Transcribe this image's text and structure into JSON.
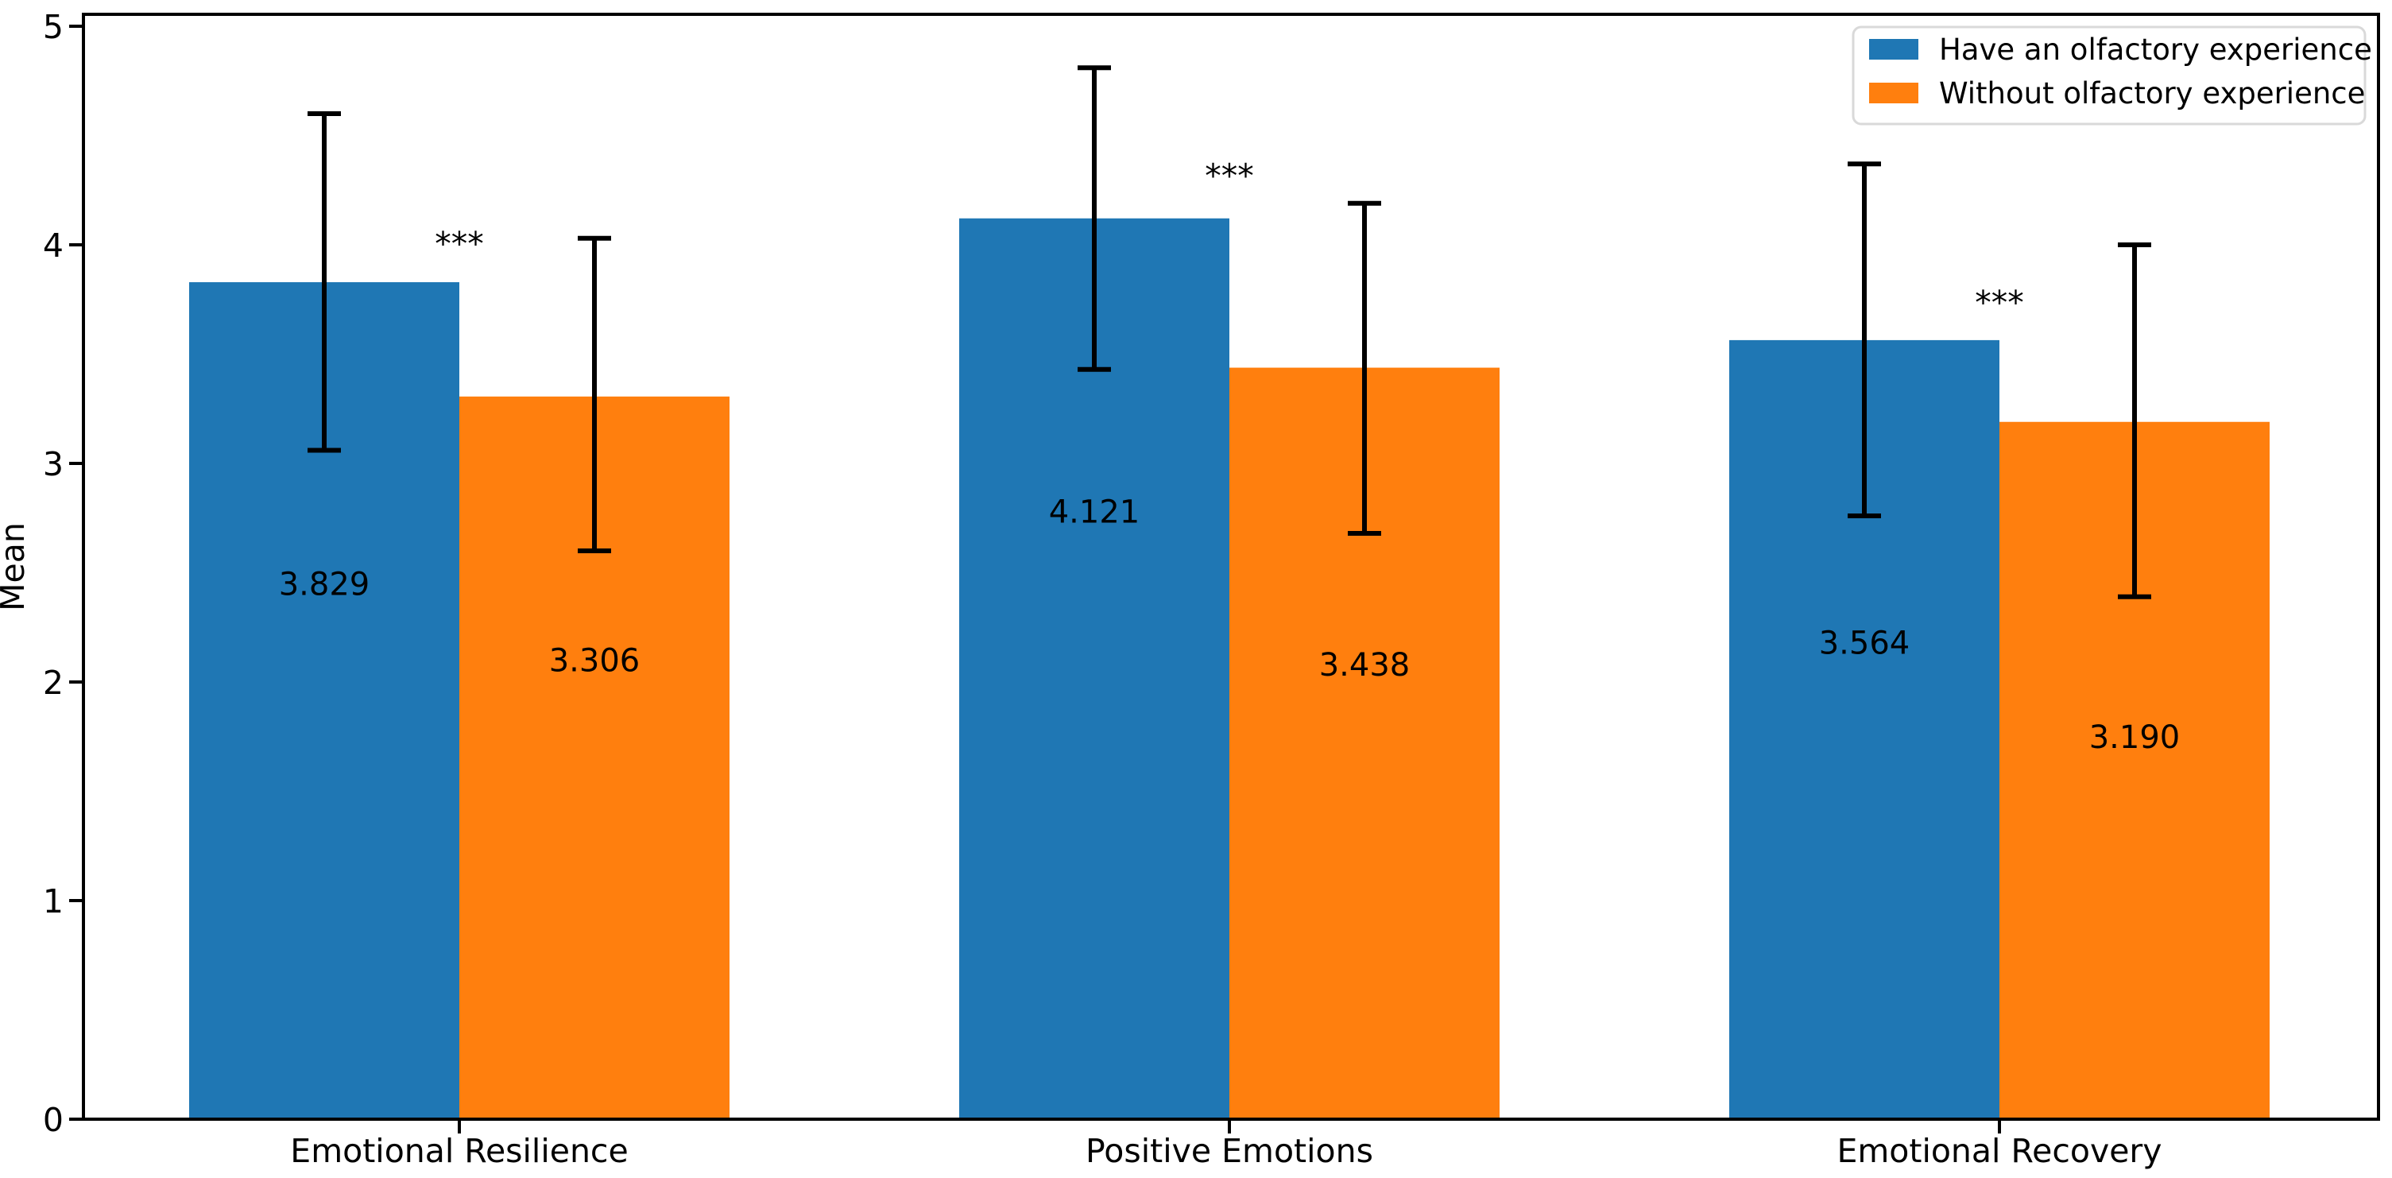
{
  "chart_data": {
    "type": "bar",
    "title": "",
    "xlabel": "",
    "ylabel": "Mean",
    "ylim": [
      0,
      5
    ],
    "yticks": [
      "0",
      "1",
      "2",
      "3",
      "4",
      "5"
    ],
    "grid": false,
    "background": "#ffffff",
    "axis_color": "#000000",
    "error_bar_color": "#000000",
    "categories": [
      "Emotional Resilience",
      "Positive Emotions",
      "Emotional Recovery"
    ],
    "series": [
      {
        "name": "Have an olfactory experience",
        "color": "#1f77b4",
        "values": [
          3.829,
          4.121,
          3.564
        ],
        "value_labels": [
          "3.829",
          "4.121",
          "3.564"
        ],
        "error_low": [
          3.06,
          3.43,
          2.76
        ],
        "error_high": [
          4.6,
          4.81,
          4.37
        ],
        "label_y": [
          2.45,
          2.78,
          2.18
        ]
      },
      {
        "name": "Without olfactory experience",
        "color": "#ff7f0e",
        "values": [
          3.306,
          3.438,
          3.19
        ],
        "value_labels": [
          "3.306",
          "3.438",
          "3.190"
        ],
        "error_low": [
          2.6,
          2.68,
          2.39
        ],
        "error_high": [
          4.03,
          4.19,
          4.0
        ],
        "label_y": [
          2.1,
          2.08,
          1.75
        ]
      }
    ],
    "annotations": [
      {
        "text": "***",
        "category_index": 0,
        "y": 4.03
      },
      {
        "text": "***",
        "category_index": 1,
        "y": 4.34
      },
      {
        "text": "***",
        "category_index": 2,
        "y": 3.76
      }
    ],
    "legend": {
      "position": "upper right",
      "border_color": "#d9d9d9",
      "entries": [
        {
          "label": "Have an olfactory experience",
          "color": "#1f77b4"
        },
        {
          "label": "Without olfactory experience",
          "color": "#ff7f0e"
        }
      ]
    }
  }
}
